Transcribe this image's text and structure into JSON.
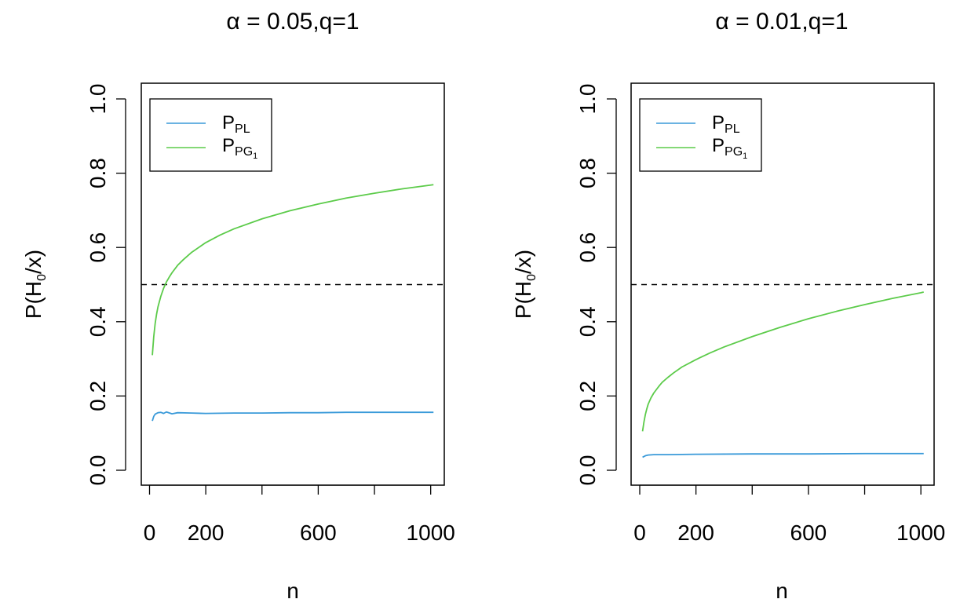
{
  "colors": {
    "ppl": "#3a9ad9",
    "ppg1": "#5ccb4a",
    "ref": "#000000"
  },
  "chart_data": [
    {
      "type": "line",
      "title": "α = 0.05,q=1",
      "xlabel": "n",
      "ylabel": {
        "base": "P(H",
        "sub": "0",
        "rest": "/x)"
      },
      "xlim": [
        0,
        1010
      ],
      "ylim": [
        0,
        1
      ],
      "xticks": [
        0,
        200,
        400,
        600,
        800,
        1000
      ],
      "xticklabels": [
        "0",
        "200",
        "",
        "600",
        "",
        "1000"
      ],
      "yticks": [
        0,
        0.2,
        0.4,
        0.6,
        0.8,
        1.0
      ],
      "yticklabels": [
        "0.0",
        "0.2",
        "0.4",
        "0.6",
        "0.8",
        "1.0"
      ],
      "hline": {
        "y": 0.5,
        "style": "dashed"
      },
      "legend": {
        "position": "top-left",
        "entries": [
          {
            "base": "P",
            "sub": "PL",
            "subsub": "",
            "color_key": "ppl"
          },
          {
            "base": "P",
            "sub": "PG",
            "subsub": "1",
            "color_key": "ppg1"
          }
        ]
      },
      "series": [
        {
          "name": "P_PL",
          "color_key": "ppl",
          "x": [
            10,
            15,
            20,
            30,
            40,
            50,
            60,
            80,
            100,
            150,
            200,
            300,
            400,
            500,
            600,
            700,
            800,
            900,
            1000,
            1010
          ],
          "y": [
            0.133,
            0.145,
            0.151,
            0.155,
            0.156,
            0.153,
            0.157,
            0.152,
            0.155,
            0.154,
            0.153,
            0.154,
            0.154,
            0.155,
            0.155,
            0.156,
            0.156,
            0.156,
            0.156,
            0.156
          ]
        },
        {
          "name": "P_PG1",
          "color_key": "ppg1",
          "x": [
            10,
            15,
            20,
            25,
            30,
            40,
            50,
            60,
            70,
            80,
            100,
            120,
            150,
            200,
            250,
            300,
            400,
            500,
            600,
            700,
            800,
            900,
            1000,
            1010
          ],
          "y": [
            0.31,
            0.36,
            0.395,
            0.42,
            0.44,
            0.468,
            0.49,
            0.507,
            0.52,
            0.532,
            0.552,
            0.567,
            0.587,
            0.613,
            0.633,
            0.65,
            0.677,
            0.699,
            0.717,
            0.733,
            0.746,
            0.758,
            0.768,
            0.769
          ]
        }
      ]
    },
    {
      "type": "line",
      "title": "α = 0.01,q=1",
      "xlabel": "n",
      "ylabel": {
        "base": "P(H",
        "sub": "0",
        "rest": "/x)"
      },
      "xlim": [
        0,
        1010
      ],
      "ylim": [
        0,
        1
      ],
      "xticks": [
        0,
        200,
        400,
        600,
        800,
        1000
      ],
      "xticklabels": [
        "0",
        "200",
        "",
        "600",
        "",
        "1000"
      ],
      "yticks": [
        0,
        0.2,
        0.4,
        0.6,
        0.8,
        1.0
      ],
      "yticklabels": [
        "0.0",
        "0.2",
        "0.4",
        "0.6",
        "0.8",
        "1.0"
      ],
      "hline": {
        "y": 0.5,
        "style": "dashed"
      },
      "legend": {
        "position": "top-left",
        "entries": [
          {
            "base": "P",
            "sub": "PL",
            "subsub": "",
            "color_key": "ppl"
          },
          {
            "base": "P",
            "sub": "PG",
            "subsub": "1",
            "color_key": "ppg1"
          }
        ]
      },
      "series": [
        {
          "name": "P_PL",
          "color_key": "ppl",
          "x": [
            10,
            20,
            30,
            50,
            100,
            200,
            400,
            600,
            800,
            1010
          ],
          "y": [
            0.035,
            0.039,
            0.041,
            0.042,
            0.042,
            0.043,
            0.044,
            0.044,
            0.045,
            0.045
          ]
        },
        {
          "name": "P_PG1",
          "color_key": "ppg1",
          "x": [
            10,
            15,
            20,
            25,
            30,
            40,
            50,
            60,
            70,
            80,
            100,
            120,
            150,
            200,
            250,
            300,
            400,
            500,
            600,
            700,
            800,
            900,
            1000,
            1010
          ],
          "y": [
            0.105,
            0.13,
            0.15,
            0.165,
            0.178,
            0.195,
            0.208,
            0.218,
            0.228,
            0.237,
            0.25,
            0.262,
            0.278,
            0.298,
            0.316,
            0.332,
            0.36,
            0.385,
            0.408,
            0.428,
            0.446,
            0.463,
            0.478,
            0.48
          ]
        }
      ]
    }
  ]
}
